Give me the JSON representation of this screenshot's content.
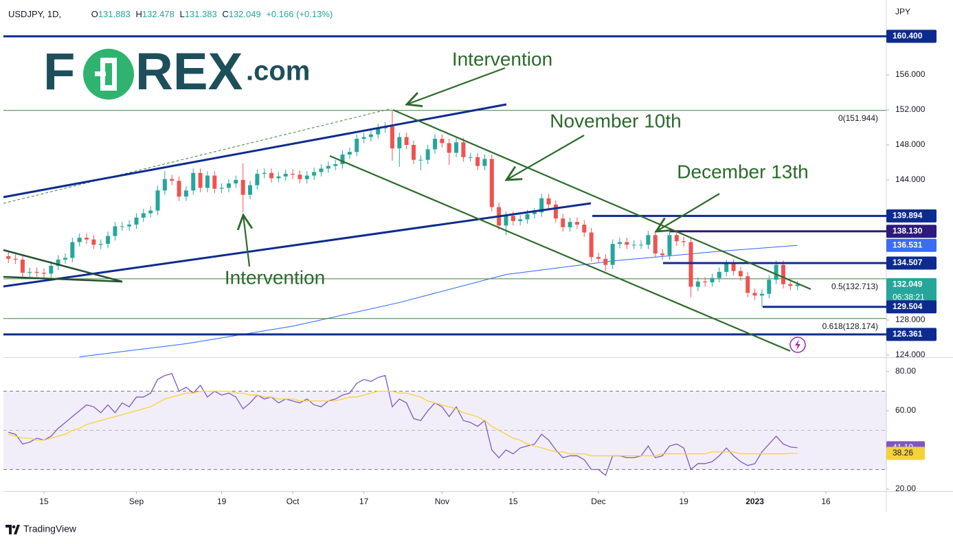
{
  "header": {
    "symbol": "USDJPY, 1D,",
    "fields": [
      {
        "key": "O",
        "value": "131.883"
      },
      {
        "key": "H",
        "value": "132.478"
      },
      {
        "key": "L",
        "value": "131.383"
      },
      {
        "key": "C",
        "value": "132.049"
      }
    ],
    "change": "+0.166 (+0.13%)",
    "currency": "JPY"
  },
  "brand": {
    "first": "F",
    "rest": "REX",
    "suffix": ".com"
  },
  "annotations": [
    "Intervention",
    "November 10th",
    "December 13th",
    "Intervention"
  ],
  "footer": "TradingView",
  "chart_data": [
    {
      "type": "candlestick",
      "up_color": "#26a69a",
      "down_color": "#ef5350",
      "xlim": [
        -0.7,
        123.5
      ],
      "ylim": [
        123.76,
        164.55
      ],
      "xticks": [
        {
          "value": 5,
          "label": "15"
        },
        {
          "value": 18,
          "label": "Sep"
        },
        {
          "value": 30,
          "label": "19"
        },
        {
          "value": 40,
          "label": "Oct"
        },
        {
          "value": 50,
          "label": "17"
        },
        {
          "value": 61,
          "label": "Nov"
        },
        {
          "value": 71,
          "label": "15"
        },
        {
          "value": 83,
          "label": "Dec"
        },
        {
          "value": 95,
          "label": "19"
        },
        {
          "value": 105,
          "label": "2023"
        },
        {
          "value": 115,
          "label": "16"
        }
      ],
      "yticks": [
        {
          "value": 124,
          "label": "124.000"
        },
        {
          "value": 128,
          "label": "128.000"
        },
        {
          "value": 144,
          "label": "144.000"
        },
        {
          "value": 148,
          "label": "148.000"
        },
        {
          "value": 152,
          "label": "152.000"
        },
        {
          "value": 156,
          "label": "156.000"
        }
      ],
      "open": [
        135.3,
        135.0,
        134.9,
        133.4,
        133.5,
        133.4,
        133.3,
        134.2,
        134.9,
        135.1,
        136.9,
        137.4,
        137.2,
        136.6,
        136.7,
        137.6,
        138.7,
        138.7,
        138.9,
        139.7,
        140.2,
        140.5,
        142.8,
        144.1,
        143.9,
        142.1,
        142.8,
        144.8,
        143.1,
        144.5,
        143.0,
        143.1,
        143.6,
        144.0,
        142.3,
        143.4,
        144.7,
        144.8,
        144.2,
        144.4,
        144.7,
        144.6,
        144.1,
        144.5,
        144.9,
        145.3,
        145.6,
        145.8,
        146.9,
        147.2,
        148.7,
        148.9,
        149.2,
        149.9,
        150.1,
        147.6,
        148.9,
        148.0,
        146.3,
        146.3,
        147.5,
        148.7,
        148.2,
        147.1,
        148.3,
        146.6,
        146.6,
        145.6,
        146.4,
        140.9,
        138.8,
        139.9,
        139.3,
        139.5,
        140.1,
        140.3,
        141.9,
        141.2,
        139.6,
        138.6,
        139.2,
        138.9,
        138.0,
        135.2,
        135.0,
        134.3,
        136.7,
        136.9,
        136.6,
        136.6,
        136.6,
        137.7,
        135.6,
        135.4,
        137.7,
        137.0,
        136.9,
        131.8,
        132.4,
        132.3,
        132.8,
        133.5,
        134.4,
        133.6,
        133.0,
        131.1,
        130.8,
        131.0,
        132.6,
        134.3,
        132.1,
        131.883
      ],
      "high": [
        135.8,
        135.5,
        135.4,
        134.0,
        134.0,
        133.9,
        134.7,
        135.4,
        135.6,
        137.4,
        137.9,
        137.9,
        137.7,
        137.2,
        138.1,
        139.2,
        139.2,
        139.4,
        140.2,
        140.7,
        141.0,
        143.3,
        145.0,
        144.6,
        144.4,
        143.3,
        145.3,
        145.3,
        145.0,
        145.0,
        143.6,
        144.1,
        144.5,
        145.9,
        143.9,
        145.2,
        145.3,
        145.3,
        144.9,
        145.2,
        145.2,
        145.1,
        145.0,
        145.4,
        145.8,
        146.1,
        146.3,
        147.4,
        147.7,
        149.2,
        149.4,
        149.7,
        150.4,
        150.6,
        151.944,
        149.4,
        149.4,
        148.5,
        146.8,
        148.0,
        149.2,
        149.2,
        148.7,
        148.8,
        148.8,
        147.1,
        147.1,
        146.9,
        146.9,
        141.4,
        140.4,
        140.4,
        140.0,
        140.6,
        140.8,
        142.4,
        142.4,
        141.7,
        140.1,
        139.7,
        139.7,
        139.4,
        138.5,
        135.7,
        135.5,
        137.2,
        137.4,
        137.4,
        137.1,
        137.1,
        138.2,
        138.2,
        136.1,
        138.2,
        138.2,
        137.5,
        137.4,
        132.9,
        132.9,
        133.3,
        134.0,
        134.9,
        134.9,
        134.1,
        133.5,
        131.6,
        131.5,
        133.1,
        134.8,
        134.8,
        132.4,
        132.478
      ],
      "low": [
        134.5,
        134.4,
        132.9,
        132.9,
        132.9,
        132.8,
        132.8,
        133.7,
        134.4,
        134.6,
        136.4,
        136.7,
        136.1,
        136.1,
        136.2,
        137.1,
        138.2,
        138.2,
        138.4,
        139.2,
        139.7,
        140.0,
        142.3,
        143.4,
        141.6,
        141.6,
        142.3,
        142.6,
        142.6,
        142.5,
        142.5,
        142.6,
        143.1,
        140.3,
        141.8,
        142.9,
        144.2,
        143.7,
        143.7,
        143.9,
        144.1,
        143.6,
        143.6,
        144.0,
        144.4,
        144.8,
        145.1,
        145.3,
        146.4,
        146.7,
        148.2,
        148.4,
        148.7,
        149.4,
        146.2,
        145.5,
        147.5,
        145.8,
        145.1,
        145.8,
        147.0,
        147.7,
        145.7,
        146.6,
        146.1,
        146.1,
        145.1,
        145.1,
        140.4,
        138.3,
        137.7,
        138.8,
        138.8,
        139.0,
        139.6,
        139.8,
        140.7,
        139.1,
        138.1,
        138.1,
        138.4,
        137.5,
        134.7,
        134.5,
        133.6,
        133.8,
        136.2,
        136.1,
        136.1,
        136.1,
        136.1,
        135.1,
        134.9,
        134.9,
        136.5,
        136.4,
        130.6,
        131.3,
        131.8,
        131.8,
        132.3,
        133.0,
        133.1,
        132.5,
        130.6,
        130.3,
        129.5,
        130.5,
        132.1,
        131.6,
        131.4,
        131.383
      ],
      "close": [
        135.0,
        134.9,
        133.4,
        133.5,
        133.4,
        133.3,
        134.2,
        134.9,
        135.1,
        136.9,
        137.4,
        137.2,
        136.6,
        136.7,
        137.6,
        138.7,
        138.7,
        138.9,
        139.7,
        140.2,
        140.5,
        142.8,
        144.1,
        143.9,
        142.1,
        142.8,
        144.8,
        143.1,
        144.5,
        143.0,
        143.1,
        143.6,
        144.0,
        142.3,
        143.4,
        144.7,
        144.8,
        144.2,
        144.4,
        144.7,
        144.6,
        144.1,
        144.5,
        144.9,
        145.3,
        145.6,
        145.8,
        146.9,
        147.2,
        148.7,
        148.9,
        149.2,
        149.9,
        150.1,
        147.6,
        148.9,
        148.0,
        146.3,
        146.3,
        147.5,
        148.7,
        148.2,
        147.1,
        148.3,
        146.6,
        146.6,
        145.6,
        146.4,
        140.9,
        138.8,
        139.9,
        139.3,
        139.5,
        140.1,
        140.3,
        141.9,
        141.2,
        139.6,
        138.6,
        139.2,
        138.9,
        138.0,
        135.2,
        135.0,
        134.3,
        136.7,
        136.9,
        136.6,
        136.6,
        136.6,
        137.7,
        135.6,
        135.4,
        137.7,
        137.0,
        136.9,
        131.8,
        132.4,
        132.3,
        132.8,
        133.5,
        134.4,
        133.6,
        133.0,
        131.1,
        130.8,
        131.0,
        132.6,
        134.3,
        132.1,
        131.9,
        132.049
      ],
      "ma200": {
        "color": "#2962ff",
        "x": [
          10,
          25,
          40,
          55,
          70,
          85,
          100,
          111
        ],
        "values": [
          123.8,
          125.3,
          127.3,
          130.0,
          133.2,
          134.75,
          135.85,
          136.531
        ]
      },
      "fib_color": "#3e7f3e",
      "fib": [
        {
          "value": 151.944,
          "label": "0(151.944)"
        },
        {
          "value": 132.713,
          "label": "0.5(132.713)"
        },
        {
          "value": 128.174,
          "label": "0.618(128.174)"
        }
      ],
      "levels": [
        {
          "value": 160.4,
          "label": "160.400",
          "color": "#0d2b8e",
          "line": true
        },
        {
          "value": 139.894,
          "label": "139.894",
          "color": "#0d2b8e",
          "line": true
        },
        {
          "value": 138.13,
          "label": "138.130",
          "color": "#2e1a7a",
          "line": true
        },
        {
          "value": 136.531,
          "label": "136.531",
          "color": "#3a6cf4",
          "line": false
        },
        {
          "value": 134.507,
          "label": "134.507",
          "color": "#0d2b8e",
          "line": true
        },
        {
          "value": 132.049,
          "label": "132.049",
          "color": "#26a69a",
          "line": false,
          "countdown": "06:38:21"
        },
        {
          "value": 129.504,
          "label": "129.504",
          "color": "#0d2b8e",
          "line": true
        },
        {
          "value": 126.361,
          "label": "126.361",
          "color": "#0d2b8e",
          "line": true
        }
      ]
    },
    {
      "type": "line",
      "xlim": [
        -0.7,
        123.5
      ],
      "ylim": [
        18.95,
        86.67
      ],
      "yticks": [
        {
          "value": 20,
          "label": "20.00"
        },
        {
          "value": 60,
          "label": "60.00"
        },
        {
          "value": 80,
          "label": "80.00"
        }
      ],
      "band": [
        30,
        70
      ],
      "band_color": "#7e57c2",
      "midline": 50,
      "series": [
        {
          "color": "#7e57c2",
          "last_label": "41.10",
          "label_text_color": "#ffffff",
          "values": [
            49,
            48,
            43,
            44,
            46,
            45,
            47,
            51,
            54,
            57,
            60,
            63,
            62,
            59,
            63,
            59,
            64,
            62,
            67,
            67,
            69,
            76,
            78,
            79,
            70,
            72,
            69,
            73,
            67,
            70,
            68,
            69,
            67,
            61,
            64,
            68,
            66,
            67,
            64,
            66,
            65,
            64,
            66,
            63,
            62,
            65,
            66,
            68,
            69,
            74,
            76,
            75,
            77,
            78,
            62,
            66,
            64,
            56,
            55,
            60,
            64,
            62,
            57,
            62,
            55,
            54,
            52,
            55,
            40,
            36,
            40,
            38,
            41,
            42,
            43,
            48,
            45,
            40,
            36,
            37,
            37,
            35,
            30,
            30,
            27,
            37,
            37,
            36,
            36,
            37,
            42,
            36,
            37,
            42,
            43,
            41,
            30,
            33,
            33,
            34,
            37,
            41,
            37,
            34,
            32,
            33,
            39,
            43,
            47,
            43,
            41.5,
            41.1
          ]
        },
        {
          "color": "#f5d23a",
          "last_label": "38.26",
          "label_text_color": "#131722",
          "values": [
            48,
            47,
            46,
            46,
            45,
            45,
            46,
            47,
            48,
            50,
            51,
            53,
            54,
            55,
            56,
            57,
            58,
            59,
            60,
            61,
            62,
            64,
            66,
            67,
            68,
            69,
            69,
            70,
            70,
            70,
            70,
            70,
            69,
            69,
            68,
            68,
            67,
            67,
            66,
            66,
            66,
            65,
            65,
            65,
            65,
            65,
            65,
            66,
            67,
            67,
            68,
            69,
            70,
            70,
            70,
            69,
            69,
            68,
            67,
            65,
            64,
            63,
            62,
            61,
            59,
            58,
            57,
            55,
            52,
            50,
            48,
            46,
            45,
            43,
            42,
            41,
            40,
            39,
            39,
            38,
            38,
            38,
            37,
            37,
            37,
            37,
            37,
            37,
            37,
            37,
            37,
            37,
            38,
            38,
            38,
            38,
            38,
            38,
            38,
            39,
            39,
            39,
            39,
            38,
            38,
            38,
            38,
            38,
            38,
            38,
            38.2,
            38.26
          ]
        }
      ]
    }
  ]
}
